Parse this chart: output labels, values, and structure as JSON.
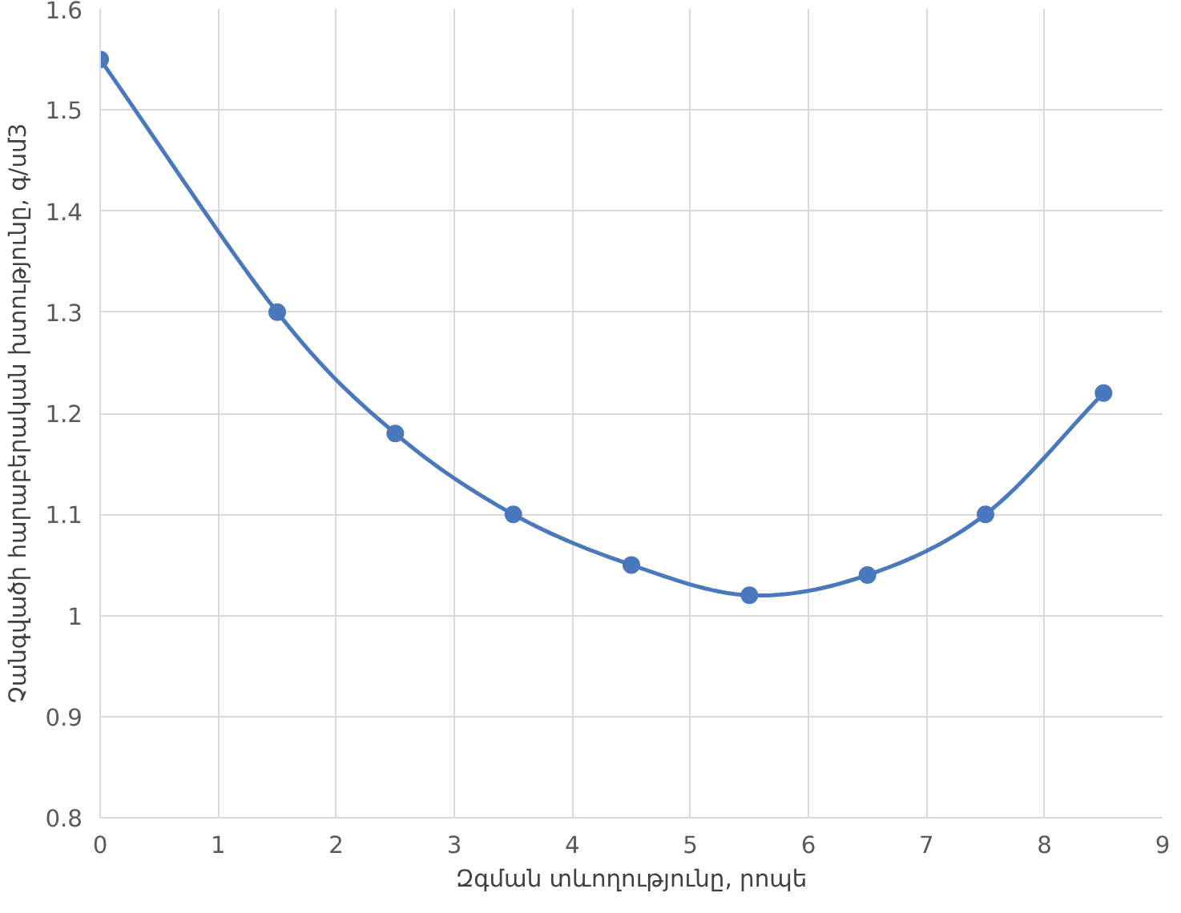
{
  "chart_data": {
    "type": "line",
    "xlabel": "Զգման տևողությունը, րոպե",
    "ylabel": "Չանգվածի հարաբերական խտությունը, գ/սմ3",
    "x": [
      0,
      1.5,
      2.5,
      3.5,
      4.5,
      5.5,
      6.5,
      7.5,
      8.5
    ],
    "series": [
      {
        "color": "#4a78bd",
        "values": [
          1.55,
          1.3,
          1.18,
          1.1,
          1.05,
          1.02,
          1.04,
          1.1,
          1.22
        ]
      }
    ],
    "xlim": [
      0,
      9
    ],
    "xticks": [
      0,
      1,
      2,
      3,
      4,
      5,
      6,
      7,
      8,
      9
    ],
    "ylim": [
      0.8,
      1.6
    ],
    "yticks": [
      0.8,
      {
        "value": 0.9,
        "label": "0.9"
      },
      1,
      1.1,
      1.2,
      1.3,
      1.4,
      1.5,
      1.6
    ],
    "grid": true,
    "marker": "circle"
  }
}
